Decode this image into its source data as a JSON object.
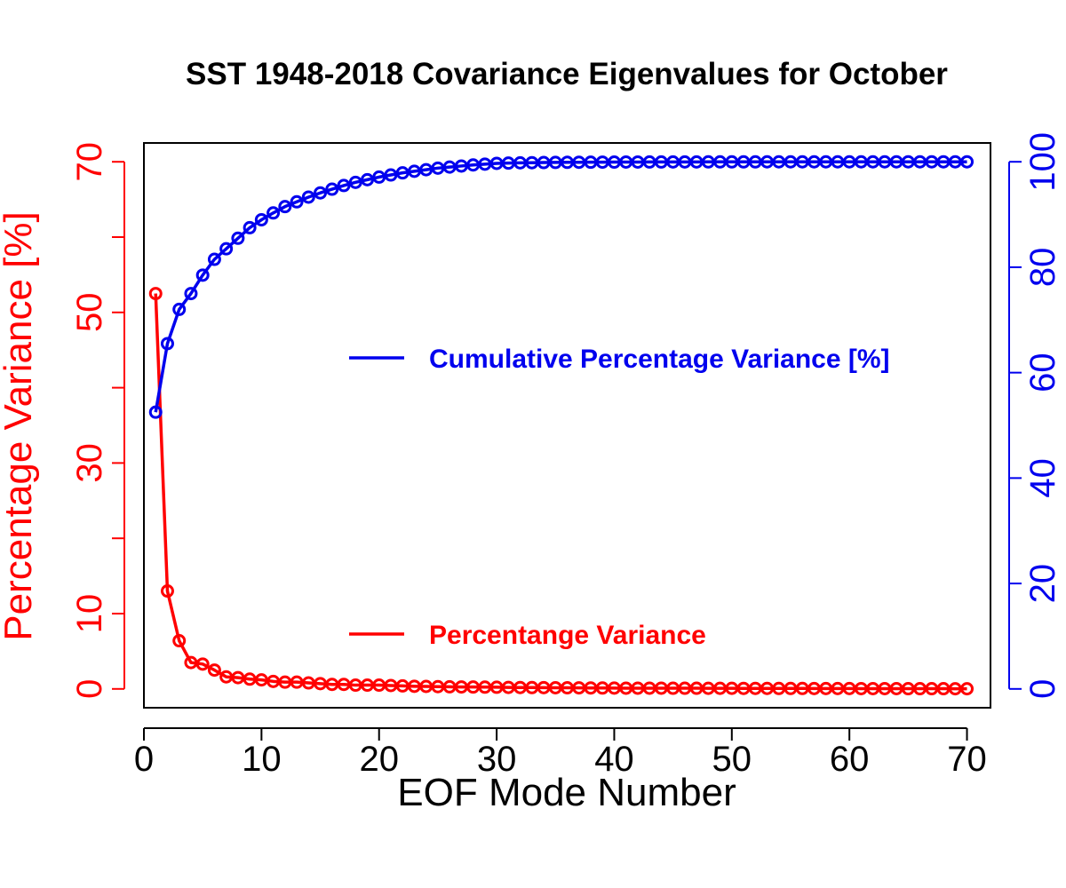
{
  "chart_data": {
    "type": "line",
    "title": "SST 1948-2018 Covariance Eigenvalues for October",
    "xlabel": "EOF Mode Number",
    "ylabel_left": "Percentage Variance [%]",
    "xlim": [
      0,
      72
    ],
    "ylim_left": [
      -2.5,
      72.5
    ],
    "ylim_right": [
      -3.57,
      103.57
    ],
    "x_ticks": [
      0,
      10,
      20,
      30,
      40,
      50,
      60,
      70
    ],
    "y_left_ticks": [
      0,
      10,
      20,
      30,
      40,
      50,
      60,
      70
    ],
    "y_left_tick_labels": [
      "0",
      "10",
      "",
      "30",
      "",
      "50",
      "",
      "70"
    ],
    "y_right_ticks": [
      0,
      20,
      40,
      60,
      80,
      100
    ],
    "y_right_tick_labels": [
      "0",
      "20",
      "40",
      "60",
      "80",
      "100"
    ],
    "grid": false,
    "legend_position": "center-right",
    "colors": {
      "percent": "#ff0000",
      "cumulative": "#0000ee",
      "axis": "#000000"
    },
    "x": [
      1,
      2,
      3,
      4,
      5,
      6,
      7,
      8,
      9,
      10,
      11,
      12,
      13,
      14,
      15,
      16,
      17,
      18,
      19,
      20,
      21,
      22,
      23,
      24,
      25,
      26,
      27,
      28,
      29,
      30,
      31,
      32,
      33,
      34,
      35,
      36,
      37,
      38,
      39,
      40,
      41,
      42,
      43,
      44,
      45,
      46,
      47,
      48,
      49,
      50,
      51,
      52,
      53,
      54,
      55,
      56,
      57,
      58,
      59,
      60,
      61,
      62,
      63,
      64,
      65,
      66,
      67,
      68,
      69,
      70
    ],
    "series": [
      {
        "name": "Percentange Variance",
        "axis": "left",
        "values": [
          52.5,
          13,
          6.4,
          3.5,
          3.3,
          2.5,
          1.6,
          1.5,
          1.3,
          1.2,
          1.0,
          0.9,
          0.9,
          0.8,
          0.7,
          0.6,
          0.6,
          0.5,
          0.5,
          0.5,
          0.45,
          0.4,
          0.35,
          0.33,
          0.3,
          0.28,
          0.26,
          0.25,
          0.24,
          0.22,
          0.2,
          0.19,
          0.18,
          0.17,
          0.16,
          0.15,
          0.14,
          0.13,
          0.12,
          0.11,
          0.1,
          0.1,
          0.1,
          0.1,
          0.09,
          0.09,
          0.09,
          0.08,
          0.08,
          0.08,
          0.07,
          0.07,
          0.07,
          0.06,
          0.06,
          0.06,
          0.05,
          0.05,
          0.05,
          0.05,
          0.04,
          0.04,
          0.04,
          0.04,
          0.03,
          0.03,
          0.03,
          0.03,
          0.02,
          0.02
        ]
      },
      {
        "name": "Cumulative Percentage Variance [%]",
        "axis": "right",
        "values": [
          52.5,
          65.5,
          72,
          75,
          78.5,
          81.5,
          83.5,
          85.5,
          87.5,
          89,
          90.3,
          91.5,
          92.4,
          93.3,
          94.1,
          94.8,
          95.5,
          96.1,
          96.6,
          97.1,
          97.5,
          97.9,
          98.2,
          98.5,
          98.8,
          99,
          99.2,
          99.4,
          99.55,
          99.7,
          99.75,
          99.8,
          99.83,
          99.86,
          99.88,
          99.9,
          99.91,
          99.92,
          99.93,
          99.94,
          99.95,
          99.95,
          99.96,
          99.96,
          99.97,
          99.97,
          99.97,
          99.98,
          99.98,
          99.98,
          99.98,
          99.98,
          99.99,
          99.99,
          99.99,
          99.99,
          99.99,
          99.99,
          99.99,
          99.99,
          99.99,
          99.99,
          99.99,
          100,
          100,
          100,
          100,
          100,
          100,
          100
        ]
      }
    ],
    "legend": [
      {
        "label": "Cumulative Percentage Variance [%]",
        "color": "#0000ee"
      },
      {
        "label": "Percentange Variance",
        "color": "#ff0000"
      }
    ]
  }
}
